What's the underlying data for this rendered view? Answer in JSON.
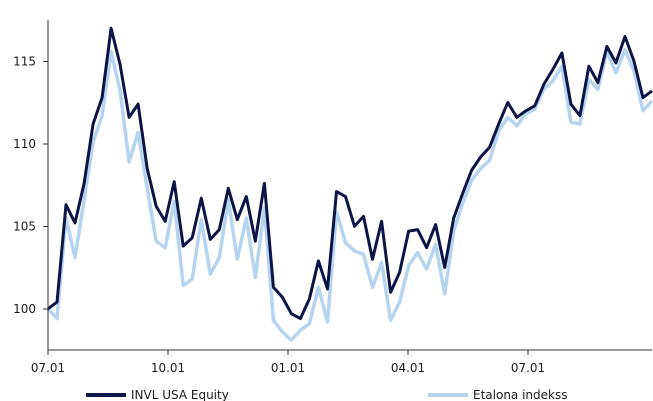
{
  "chart_data": {
    "type": "line",
    "title": "",
    "xlabel": "",
    "ylabel": "",
    "ylim": [
      97.5,
      117.5
    ],
    "y_ticks": [
      "100",
      "105",
      "110",
      "115"
    ],
    "x_ticks": [
      "07.01",
      "10.01",
      "01.01",
      "04.01",
      "07.01"
    ],
    "legend_position": "bottom",
    "grid": false,
    "x": [
      "07.01",
      "07.03",
      "07.07",
      "07.10",
      "07.15",
      "07.22",
      "07.29",
      "08.05",
      "08.12",
      "08.19",
      "08.26",
      "09.02",
      "09.09",
      "09.16",
      "09.23",
      "09.30",
      "10.07",
      "10.14",
      "10.21",
      "10.28",
      "11.04",
      "11.11",
      "11.18",
      "11.25",
      "12.02",
      "12.09",
      "12.16",
      "12.23",
      "12.30",
      "01.06",
      "01.13",
      "01.20",
      "01.27",
      "02.03",
      "02.10",
      "02.17",
      "02.24",
      "03.03",
      "03.10",
      "03.17",
      "03.24",
      "03.31",
      "04.07",
      "04.14",
      "04.21",
      "04.28",
      "05.05",
      "05.12",
      "05.19",
      "05.26",
      "06.02",
      "06.09",
      "06.16",
      "06.23",
      "06.30",
      "07.07",
      "07.14",
      "07.21",
      "07.28",
      "08.04",
      "08.11",
      "08.18",
      "08.25",
      "09.01",
      "09.08",
      "09.15",
      "09.22",
      "09.29"
    ],
    "series": [
      {
        "name": "INVL USA Equity",
        "color": "#0d1446",
        "values": [
          100.0,
          100.4,
          106.3,
          105.2,
          107.6,
          111.2,
          112.8,
          117.0,
          114.8,
          111.6,
          112.4,
          108.5,
          106.2,
          105.3,
          107.7,
          103.8,
          104.3,
          106.7,
          104.2,
          104.8,
          107.3,
          105.4,
          106.8,
          104.1,
          107.6,
          101.3,
          100.7,
          99.7,
          99.4,
          100.6,
          102.9,
          101.2,
          107.1,
          106.8,
          105.0,
          105.6,
          103.0,
          105.3,
          101.0,
          102.2,
          104.7,
          104.8,
          103.7,
          105.1,
          102.5,
          105.5,
          107.0,
          108.4,
          109.2,
          109.8,
          111.2,
          112.5,
          111.6,
          112.0,
          112.3,
          113.6,
          114.5,
          115.5,
          112.4,
          111.7,
          114.7,
          113.7,
          115.9,
          114.9,
          116.5,
          115.0,
          112.8,
          113.2
        ]
      },
      {
        "name": "Etalona indekss",
        "color": "#b5d4f0",
        "values": [
          100.0,
          99.4,
          105.5,
          103.1,
          106.6,
          110.1,
          111.7,
          115.6,
          113.2,
          108.9,
          110.7,
          107.3,
          104.1,
          103.7,
          106.5,
          101.4,
          101.8,
          105.4,
          102.1,
          103.1,
          106.6,
          103.0,
          105.5,
          101.9,
          106.1,
          99.3,
          98.6,
          98.1,
          98.7,
          99.1,
          101.3,
          99.2,
          105.9,
          104.0,
          103.5,
          103.3,
          101.3,
          102.8,
          99.3,
          100.4,
          102.6,
          103.4,
          102.4,
          103.9,
          100.9,
          104.7,
          106.4,
          107.8,
          108.5,
          109.0,
          110.8,
          111.6,
          111.1,
          111.8,
          112.1,
          113.3,
          113.8,
          114.7,
          111.3,
          111.2,
          113.9,
          113.3,
          115.6,
          114.3,
          115.7,
          114.4,
          112.0,
          112.6
        ]
      }
    ]
  }
}
